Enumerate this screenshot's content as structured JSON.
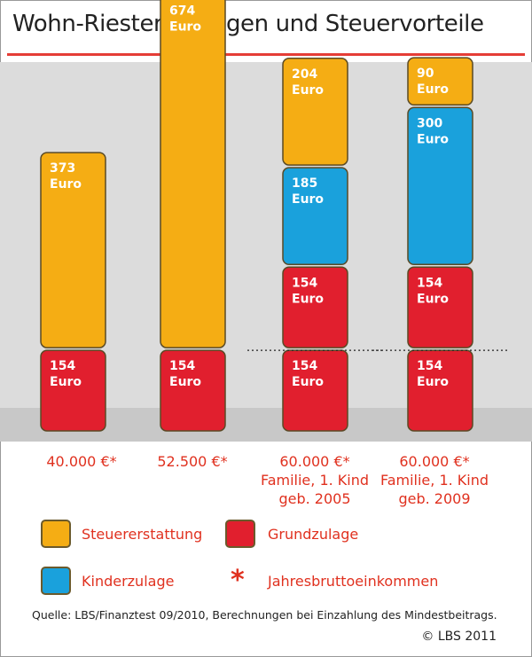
{
  "title": "Wohn-Riester: Zulagen und Steuervorteile",
  "chart_data": {
    "type": "bar",
    "stacked": true,
    "categories": [
      [
        "40.000 €*"
      ],
      [
        "52.500 €*"
      ],
      [
        "60.000 €*",
        "Familie, 1. Kind",
        "geb. 2005"
      ],
      [
        "60.000 €*",
        "Familie, 1. Kind",
        "geb. 2009"
      ]
    ],
    "series": [
      {
        "name": "Grundzulage",
        "color": "#e11f2e",
        "values": [
          154,
          154,
          308,
          308
        ],
        "segments": [
          [
            154
          ],
          [
            154
          ],
          [
            154,
            154
          ],
          [
            154,
            154
          ]
        ],
        "labels": [
          [
            "154",
            "Euro"
          ],
          [
            "154",
            "Euro"
          ],
          [
            [
              "154",
              "Euro"
            ],
            [
              "154",
              "Euro"
            ]
          ],
          [
            [
              "154",
              "Euro"
            ],
            [
              "154",
              "Euro"
            ]
          ]
        ]
      },
      {
        "name": "Kinderzulage",
        "color": "#1aa1dc",
        "values": [
          0,
          0,
          185,
          300
        ]
      },
      {
        "name": "Steuererstattung",
        "color": "#f5ad14",
        "values": [
          373,
          674,
          204,
          90
        ]
      }
    ],
    "value_labels": {
      "grund": [
        [
          [
            "154",
            "Euro"
          ]
        ],
        [
          [
            "154",
            "Euro"
          ]
        ],
        [
          [
            "154",
            "Euro"
          ],
          [
            "154",
            "Euro"
          ]
        ],
        [
          [
            "154",
            "Euro"
          ],
          [
            "154",
            "Euro"
          ]
        ]
      ],
      "kinder": [
        null,
        null,
        [
          "185",
          "Euro"
        ],
        [
          "300",
          "Euro"
        ]
      ],
      "steuer": [
        [
          "373",
          "Euro"
        ],
        [
          "674",
          "Euro"
        ],
        [
          "204",
          "Euro"
        ],
        [
          "90",
          "Euro"
        ]
      ]
    },
    "unit": "Euro"
  },
  "legend": [
    {
      "label": "Steuererstattung",
      "color": "#f5ad14",
      "kind": "swatch"
    },
    {
      "label": "Grundzulage",
      "color": "#e11f2e",
      "kind": "swatch"
    },
    {
      "label": "Kinderzulage",
      "color": "#1aa1dc",
      "kind": "swatch"
    },
    {
      "label": "Jahresbruttoeinkommen",
      "symbol": "*",
      "kind": "symbol"
    }
  ],
  "source_note": "Quelle: LBS/Finanztest 09/2010, Berechnungen bei Einzahlung des Mindestbeitrags.",
  "copyright": "© LBS 2011"
}
